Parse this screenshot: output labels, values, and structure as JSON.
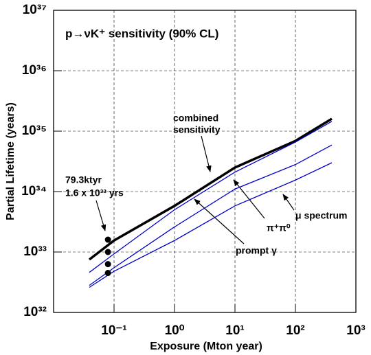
{
  "chart_data": {
    "type": "line",
    "title": "p→νK⁺ sensitivity (90% CL)",
    "x_label": "Exposure (Mton year)",
    "y_label": "Partial Lifetime (years)",
    "xscale": "log",
    "yscale": "log",
    "grid": true,
    "xlim": [
      0.01,
      1000
    ],
    "ylim": [
      1e+32,
      1e+37
    ],
    "xticks": [
      {
        "value": 0.1,
        "label": "10⁻¹"
      },
      {
        "value": 1,
        "label": "10⁰"
      },
      {
        "value": 10,
        "label": "10¹"
      },
      {
        "value": 100,
        "label": "10²"
      },
      {
        "value": 1000,
        "label": "10³"
      }
    ],
    "yticks": [
      {
        "value": 1e+32,
        "label": "10³²"
      },
      {
        "value": 1e+33,
        "label": "10³³"
      },
      {
        "value": 1e+34,
        "label": "10³⁴"
      },
      {
        "value": 1e+35,
        "label": "10³⁵"
      },
      {
        "value": 1e+36,
        "label": "10³⁶"
      },
      {
        "value": 1e+37,
        "label": "10³⁷"
      }
    ],
    "series": [
      {
        "color": "#000000",
        "width": 3.5,
        "mode": "line",
        "x": [
          0.039,
          0.1,
          1,
          10,
          100,
          400
        ],
        "values": [
          7.5e+32,
          1.55e+33,
          5.8e+33,
          2.5e+34,
          6.9e+34,
          1.6e+35
        ]
      },
      {
        "color": "#0000cc",
        "width": 1.3,
        "mode": "line",
        "x": [
          0.039,
          0.1,
          1,
          10,
          100,
          400
        ],
        "values": [
          4.6e+32,
          9.3e+32,
          5e+33,
          2.1e+34,
          6.6e+34,
          1.45e+35
        ]
      },
      {
        "color": "#0000cc",
        "width": 1.3,
        "mode": "line",
        "x": [
          0.039,
          0.1,
          1,
          10,
          100,
          400
        ],
        "values": [
          2.8e+32,
          5.5e+32,
          2.6e+33,
          1.1e+34,
          2.8e+34,
          5.9e+34
        ]
      },
      {
        "color": "#0000cc",
        "width": 1.3,
        "mode": "line",
        "x": [
          0.039,
          0.1,
          1,
          10,
          100,
          400
        ],
        "values": [
          2.6e+32,
          4.8e+32,
          1.55e+33,
          5.8e+33,
          1.55e+34,
          3e+34
        ]
      },
      {
        "color": "#000000",
        "mode": "markers",
        "x": [
          0.0793,
          0.0793,
          0.0793,
          0.0793
        ],
        "values": [
          1.6e+33,
          1e+33,
          6.3e+32,
          4.5e+32
        ]
      }
    ],
    "annotations": [
      "combined",
      "sensitivity",
      "79.3ktyr",
      "1.6 x 10³³ yrs",
      "π⁺π⁰",
      "μ spectrum",
      "prompt γ"
    ]
  }
}
